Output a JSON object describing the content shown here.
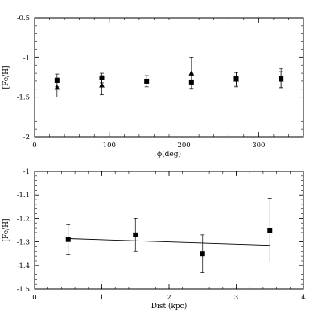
{
  "chart_data": [
    {
      "type": "scatter",
      "xlabel": "ϕ(deg)",
      "ylabel": "[Fe/H]",
      "xlim": [
        0,
        360
      ],
      "ylim": [
        -2,
        -0.5
      ],
      "y_inverted": true,
      "x_ticks": [
        0,
        100,
        200,
        300
      ],
      "x_tick_labels": [
        "0",
        "100",
        "200",
        "300"
      ],
      "y_ticks": [
        -2,
        -1.5,
        -1,
        -0.5
      ],
      "y_tick_labels": [
        "-2",
        "-1.5",
        "-1",
        "-0.5"
      ],
      "grid": false,
      "series": [
        {
          "marker": "square",
          "x": [
            30,
            90,
            150,
            210,
            270,
            330
          ],
          "y": [
            -1.29,
            -1.26,
            -1.3,
            -1.31,
            -1.27,
            -1.26
          ],
          "yerr": [
            0.08,
            0.06,
            0.07,
            0.08,
            0.08,
            0.12
          ]
        },
        {
          "marker": "triangle",
          "x": [
            30,
            90,
            210,
            270,
            330
          ],
          "y": [
            -1.38,
            -1.35,
            -1.2,
            -1.28,
            -1.28
          ],
          "yerr": [
            0.12,
            0.12,
            0.2,
            0.09,
            0.1
          ]
        }
      ]
    },
    {
      "type": "scatter",
      "xlabel": "Dist (kpc)",
      "ylabel": "[Fe/H]",
      "xlim": [
        0,
        4
      ],
      "ylim": [
        -1.5,
        -1
      ],
      "y_inverted": true,
      "x_ticks": [
        0,
        1,
        2,
        3,
        4
      ],
      "x_tick_labels": [
        "0",
        "1",
        "2",
        "3",
        "4"
      ],
      "y_ticks": [
        -1.5,
        -1.4,
        -1.3,
        -1.2,
        -1.1,
        -1
      ],
      "y_tick_labels": [
        "-1.5",
        "-1.4",
        "-1.3",
        "-1.2",
        "-1.1",
        "-1"
      ],
      "grid": false,
      "series": [
        {
          "marker": "square",
          "x": [
            0.5,
            1.5,
            2.5,
            3.5
          ],
          "y": [
            -1.29,
            -1.27,
            -1.35,
            -1.25
          ],
          "yerr": [
            0.065,
            0.07,
            0.08,
            0.135
          ]
        }
      ],
      "fit_line": {
        "x": [
          0.5,
          3.5
        ],
        "y": [
          -1.286,
          -1.314
        ]
      }
    }
  ]
}
